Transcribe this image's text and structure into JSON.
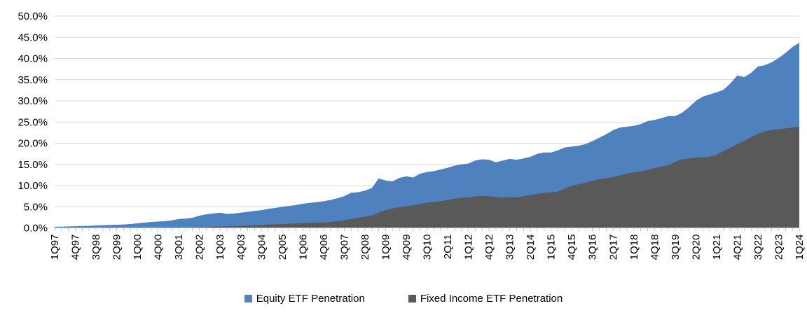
{
  "chart_data": {
    "type": "area",
    "title": "",
    "xlabel": "",
    "ylabel": "",
    "ylim": [
      0,
      50
    ],
    "ytick_step": 5,
    "ytick_labels": [
      "50.0%",
      "45.0%",
      "40.0%",
      "35.0%",
      "30.0%",
      "25.0%",
      "20.0%",
      "15.0%",
      "10.0%",
      "5.0%",
      "0.0%"
    ],
    "grid": true,
    "legend_position": "bottom",
    "render_mode": "overlapping-areas-fixed-income-in-front",
    "x_start": "1Q97",
    "x_end": "1Q24",
    "x_frequency": "quarterly",
    "xtick_label_every": 3,
    "xtick_labels": [
      "1Q97",
      "4Q97",
      "3Q98",
      "2Q99",
      "1Q00",
      "4Q00",
      "3Q01",
      "2Q02",
      "1Q03",
      "4Q03",
      "3Q04",
      "2Q05",
      "1Q06",
      "4Q06",
      "3Q07",
      "2Q08",
      "1Q09",
      "4Q09",
      "3Q10",
      "2Q11",
      "1Q12",
      "4Q12",
      "3Q13",
      "2Q14",
      "1Q15",
      "4Q15",
      "3Q16",
      "2Q17",
      "1Q18",
      "4Q18",
      "3Q19",
      "2Q20",
      "1Q21",
      "4Q21",
      "3Q22",
      "2Q23",
      "1Q24"
    ],
    "series": [
      {
        "name": "Equity ETF Penetration",
        "color": "#4E81BD",
        "values": [
          0.3,
          0.3,
          0.35,
          0.4,
          0.45,
          0.5,
          0.6,
          0.65,
          0.7,
          0.75,
          0.8,
          0.9,
          1.1,
          1.25,
          1.4,
          1.5,
          1.6,
          1.8,
          2.1,
          2.2,
          2.4,
          2.9,
          3.2,
          3.4,
          3.6,
          3.3,
          3.4,
          3.6,
          3.8,
          4.0,
          4.2,
          4.5,
          4.7,
          5.0,
          5.2,
          5.4,
          5.7,
          5.9,
          6.1,
          6.3,
          6.6,
          7.0,
          7.5,
          8.3,
          8.4,
          8.8,
          9.4,
          11.7,
          11.2,
          11.0,
          11.8,
          12.2,
          11.9,
          12.8,
          13.2,
          13.4,
          13.8,
          14.2,
          14.7,
          15.0,
          15.2,
          15.9,
          16.2,
          16.1,
          15.5,
          15.9,
          16.3,
          16.1,
          16.4,
          16.8,
          17.5,
          17.8,
          17.8,
          18.3,
          19.0,
          19.2,
          19.4,
          19.8,
          20.5,
          21.3,
          22.1,
          23.1,
          23.7,
          23.9,
          24.1,
          24.5,
          25.2,
          25.5,
          25.9,
          26.4,
          26.4,
          27.2,
          28.5,
          30.0,
          31.0,
          31.5,
          32.0,
          32.6,
          34.1,
          36.0,
          35.6,
          36.6,
          38.1,
          38.4,
          39.1,
          40.1,
          41.3,
          42.7,
          43.7
        ]
      },
      {
        "name": "Fixed Income ETF Penetration",
        "color": "#595959",
        "values": [
          0,
          0,
          0,
          0,
          0,
          0,
          0,
          0,
          0,
          0,
          0,
          0,
          0,
          0,
          0,
          0,
          0,
          0,
          0.05,
          0.05,
          0.1,
          0.1,
          0.2,
          0.3,
          0.35,
          0.4,
          0.45,
          0.5,
          0.55,
          0.6,
          0.7,
          0.8,
          0.85,
          0.9,
          1.0,
          1.05,
          1.1,
          1.2,
          1.25,
          1.3,
          1.4,
          1.6,
          1.8,
          2.1,
          2.4,
          2.65,
          3.0,
          3.6,
          4.2,
          4.6,
          4.9,
          5.1,
          5.4,
          5.7,
          6.0,
          6.1,
          6.3,
          6.6,
          6.9,
          7.1,
          7.2,
          7.45,
          7.6,
          7.45,
          7.3,
          7.2,
          7.3,
          7.2,
          7.45,
          7.8,
          8.0,
          8.3,
          8.4,
          8.55,
          9.3,
          10.0,
          10.3,
          10.7,
          11.1,
          11.5,
          11.75,
          12.0,
          12.4,
          12.8,
          13.1,
          13.3,
          13.7,
          14.1,
          14.5,
          14.8,
          15.6,
          16.2,
          16.4,
          16.6,
          16.7,
          16.8,
          17.3,
          18.1,
          18.9,
          19.8,
          20.5,
          21.4,
          22.2,
          22.8,
          23.1,
          23.3,
          23.5,
          23.7,
          23.9
        ]
      }
    ],
    "style": {
      "gridline_color": "#D9D9D9",
      "axis_color": "#C6C6C6",
      "tick_color": "#C6C6C6",
      "label_color": "#000000"
    }
  },
  "legend": {
    "equity_label": "Equity ETF Penetration",
    "fixed_income_label": "Fixed Income ETF Penetration"
  }
}
